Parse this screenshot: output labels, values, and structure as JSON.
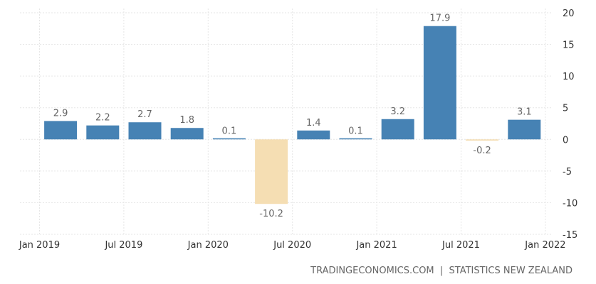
{
  "chart_data": {
    "type": "bar",
    "categories": [
      "2019 Q1",
      "2019 Q2",
      "2019 Q3",
      "2019 Q4",
      "2020 Q1",
      "2020 Q2",
      "2020 Q3",
      "2020 Q4",
      "2021 Q1",
      "2021 Q2",
      "2021 Q3",
      "2021 Q4"
    ],
    "values": [
      2.9,
      2.2,
      2.7,
      1.8,
      0.1,
      -10.2,
      1.4,
      0.1,
      3.2,
      17.9,
      -0.2,
      3.1
    ],
    "labels": [
      "2.9",
      "2.2",
      "2.7",
      "1.8",
      "0.1",
      "-10.2",
      "1.4",
      "0.1",
      "3.2",
      "17.9",
      "-0.2",
      "3.1"
    ],
    "x_ticks": [
      "Jan 2019",
      "Jul 2019",
      "Jan 2020",
      "Jul 2020",
      "Jan 2021",
      "Jul 2021",
      "Jan 2022"
    ],
    "x_tick_positions": [
      0,
      2,
      4,
      6,
      8,
      10,
      12
    ],
    "y_ticks": [
      20,
      15,
      10,
      5,
      0,
      -5,
      -10,
      -15
    ],
    "ylim": [
      -15,
      20
    ],
    "y_axis_side": "right",
    "grid": true,
    "positive_color": "#4682b4",
    "negative_color": "#f5deb3",
    "title": "",
    "xlabel": "",
    "ylabel": ""
  },
  "source_text": "TRADINGECONOMICS.COM  |  STATISTICS NEW ZEALAND"
}
